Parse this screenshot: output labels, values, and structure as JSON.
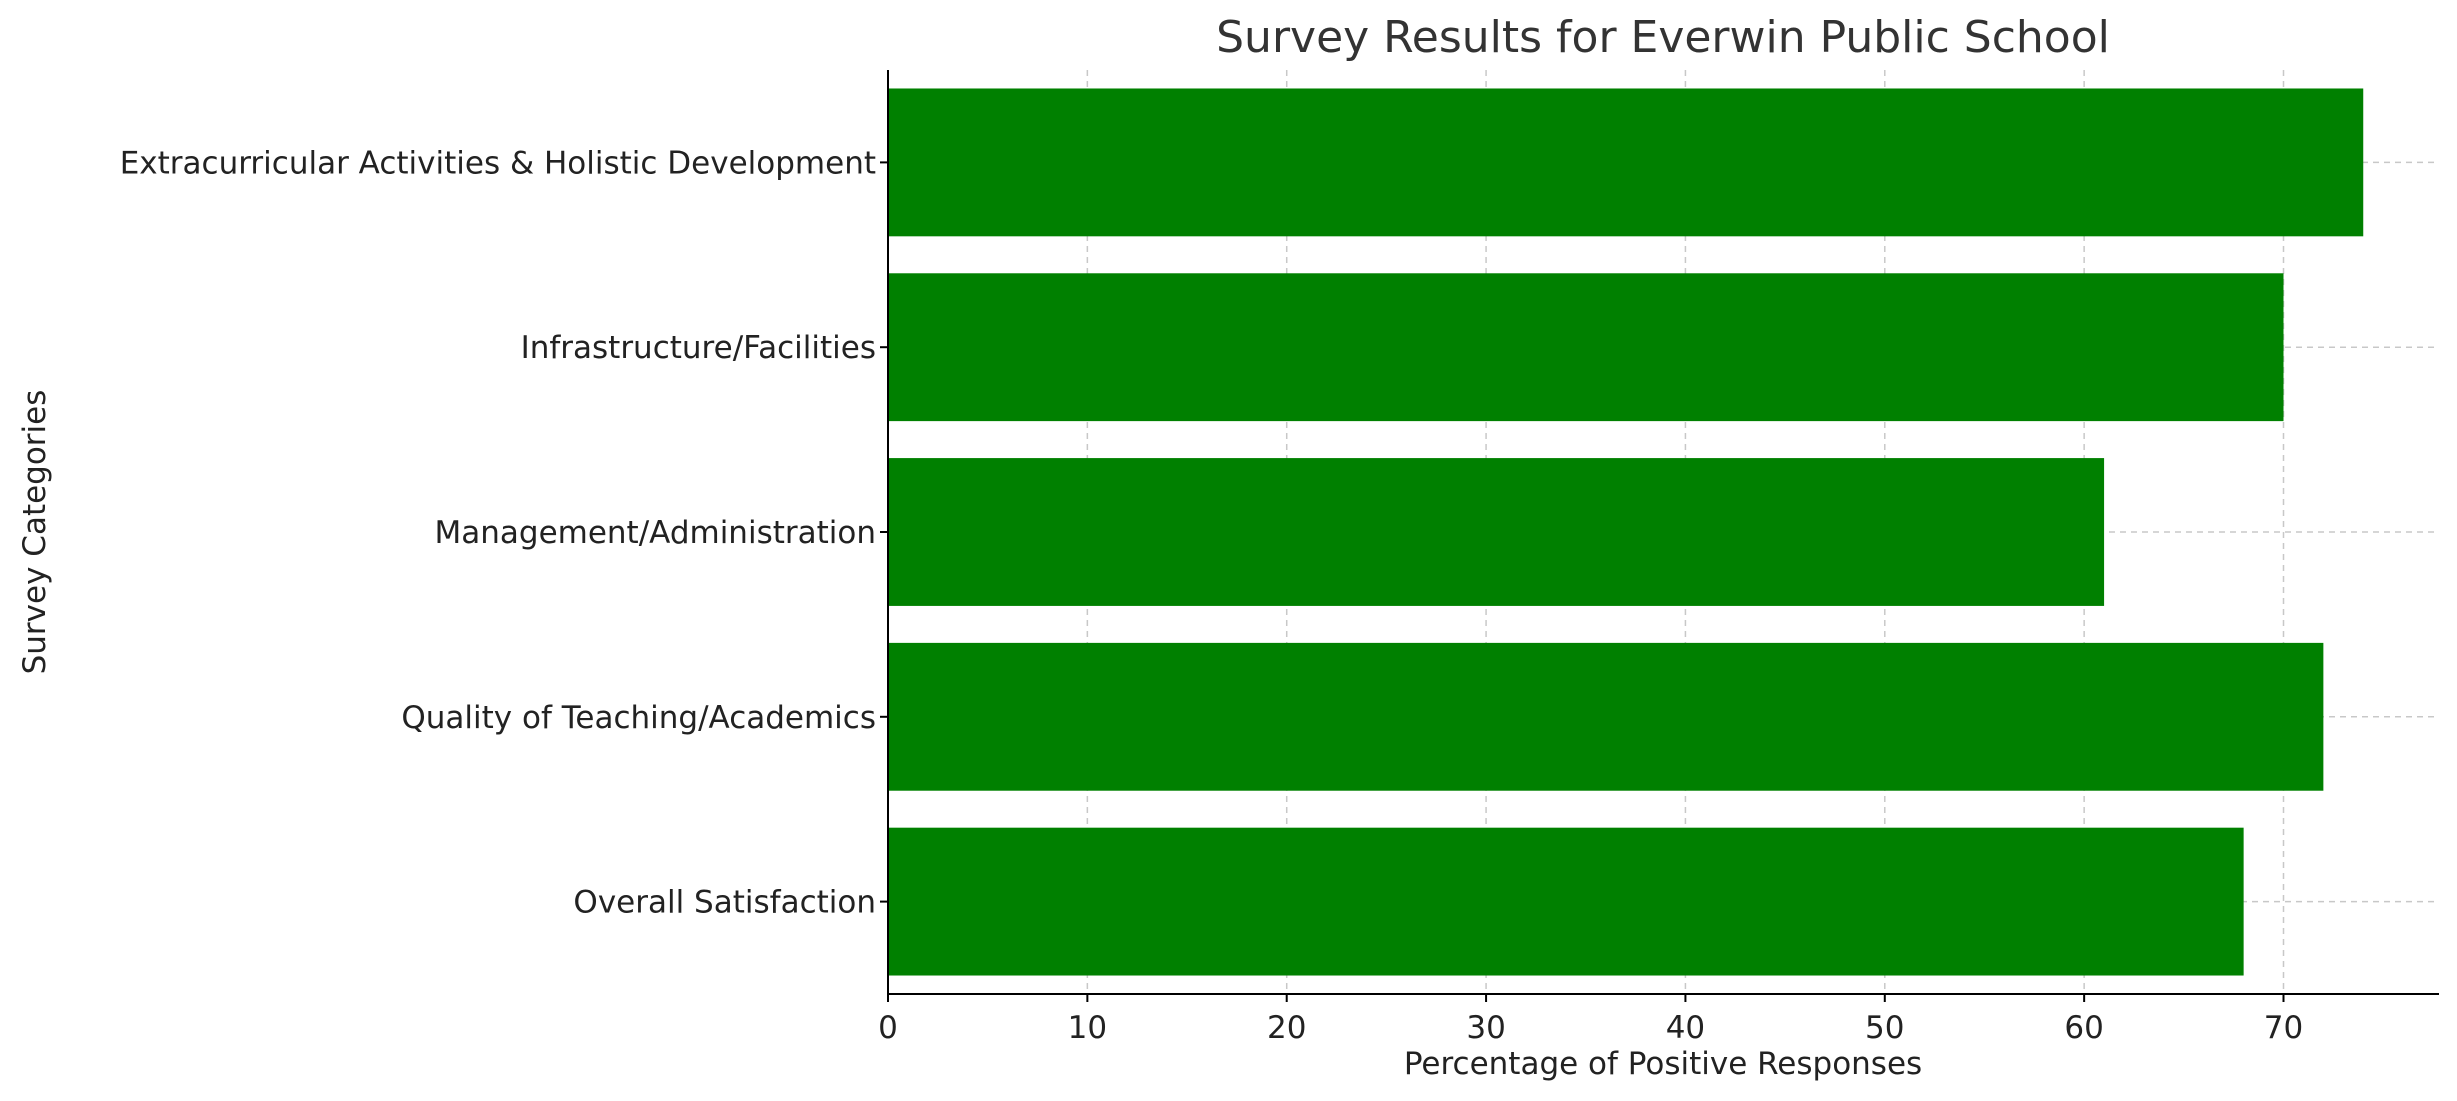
{
  "chart_data": {
    "type": "bar",
    "orientation": "horizontal",
    "title": "Survey Results for Everwin Public School",
    "xlabel": "Percentage of Positive Responses",
    "ylabel": "Survey Categories",
    "categories": [
      "Overall Satisfaction",
      "Quality of Teaching/Academics",
      "Management/Administration",
      "Infrastructure/Facilities",
      "Extracurricular Activities & Holistic Development"
    ],
    "values": [
      68,
      72,
      61,
      70,
      74
    ],
    "xlim": [
      0,
      77.8
    ],
    "xticks": [
      0,
      10,
      20,
      30,
      40,
      50,
      60,
      70
    ],
    "grid": true,
    "bar_color": "#008000"
  }
}
